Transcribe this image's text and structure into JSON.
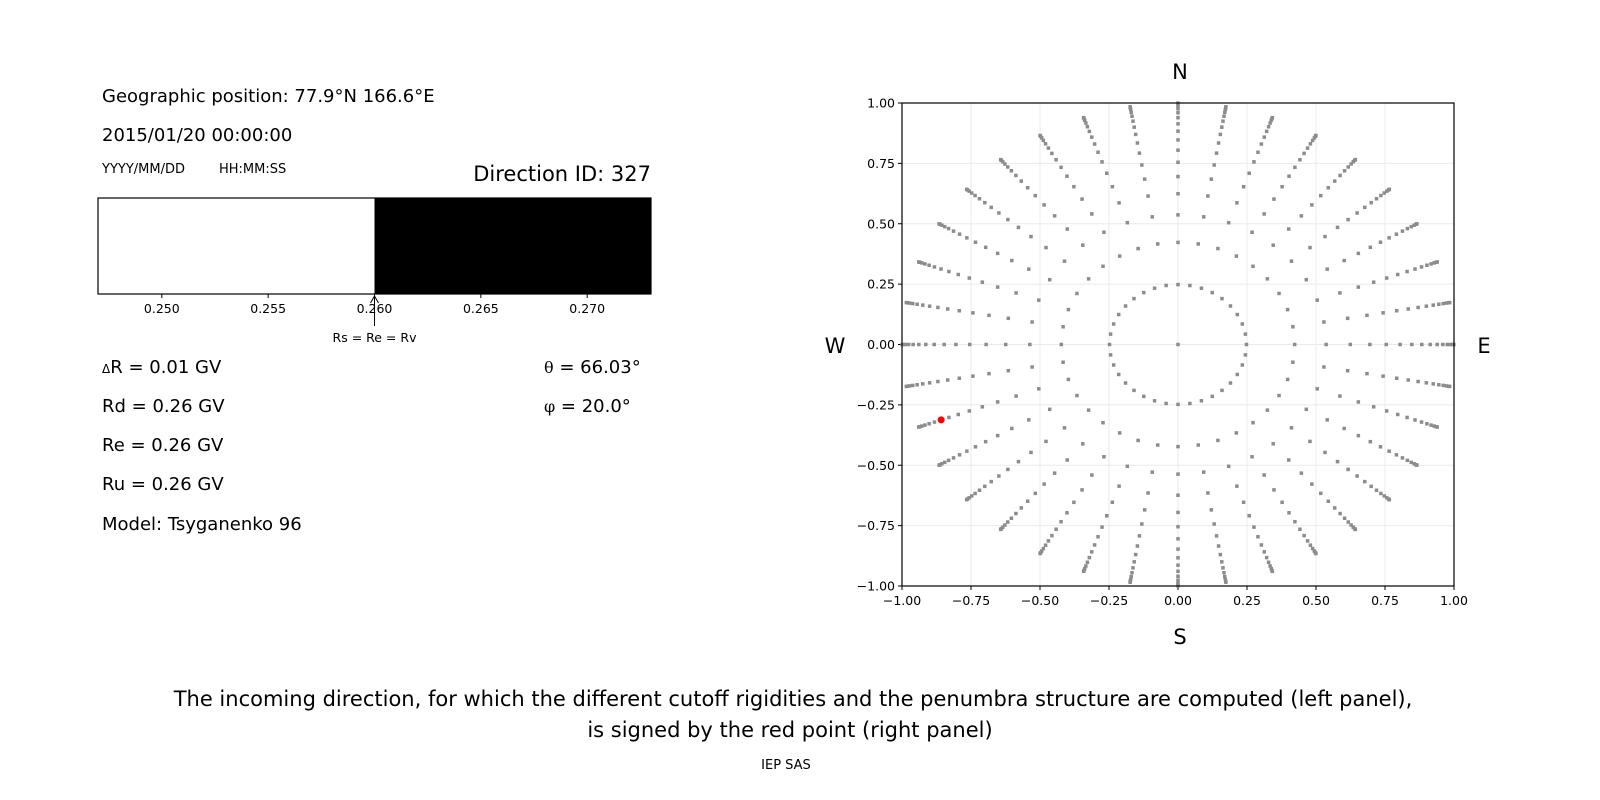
{
  "left_panel": {
    "position": "Geographic position: 77.9°N 166.6°E",
    "datetime": "2015/01/20 00:00:00",
    "date_format": "YYYY/MM/DD",
    "time_format": "HH:MM:SS",
    "direction_id": "Direction ID: 327",
    "delta_r_symbol": "Δ",
    "delta_r": "R = 0.01 GV",
    "rd": "Rd = 0.26 GV",
    "re": "Re = 0.26 GV",
    "ru": "Ru = 0.26 GV",
    "model": "Model: Tsyganenko 96",
    "theta_symbol": "θ",
    "theta": " = 66.03°",
    "phi_symbol": "φ",
    "phi": " = 20.0°"
  },
  "caption": {
    "line1": "The incoming direction, for which the different cutoff rigidities and the penumbra structure are computed (left panel),",
    "line2": "is signed by the red point (right panel)",
    "credit": "IEP SAS"
  },
  "chart_data": [
    {
      "type": "bar",
      "xlim": [
        0.247,
        0.273
      ],
      "xticks": [
        0.25,
        0.255,
        0.26,
        0.265,
        0.27
      ],
      "xtick_labels": [
        "0.250",
        "0.255",
        "0.260",
        "0.265",
        "0.270"
      ],
      "segments": [
        {
          "from": 0.247,
          "to": 0.26,
          "color": "#ffffff"
        },
        {
          "from": 0.26,
          "to": 0.273,
          "color": "#000000"
        }
      ],
      "annotation": {
        "x": 0.26,
        "text": "Rs = Re = Rv"
      }
    },
    {
      "type": "scatter",
      "xlim": [
        -1,
        1
      ],
      "ylim": [
        -1,
        1
      ],
      "xticks": [
        -1,
        -0.75,
        -0.5,
        -0.25,
        0,
        0.25,
        0.5,
        0.75,
        1
      ],
      "xtick_labels": [
        "−1.00",
        "−0.75",
        "−0.50",
        "−0.25",
        "0.00",
        "0.25",
        "0.50",
        "0.75",
        "1.00"
      ],
      "yticks": [
        -1,
        -0.75,
        -0.5,
        -0.25,
        0,
        0.25,
        0.5,
        0.75,
        1
      ],
      "ytick_labels": [
        "−1.00",
        "−0.75",
        "−0.50",
        "−0.25",
        "0.00",
        "0.25",
        "0.50",
        "0.75",
        "1.00"
      ],
      "grid": true,
      "compass": {
        "top": "N",
        "bottom": "S",
        "left": "W",
        "right": "E"
      },
      "points": {
        "azimuth_step_deg": 10,
        "cos_zenith": [
          0.96875,
          0.90625,
          0.84375,
          0.78125,
          0.71875,
          0.65625,
          0.59375,
          0.53125,
          0.46875,
          0.40625,
          0.34375,
          0.28125,
          0.21875,
          0.15625,
          0.09375,
          0.03125
        ],
        "include_center": true,
        "color": "#8c8c8c"
      },
      "highlight": {
        "x": -0.858,
        "y": -0.312,
        "color": "#ff0000"
      }
    }
  ]
}
